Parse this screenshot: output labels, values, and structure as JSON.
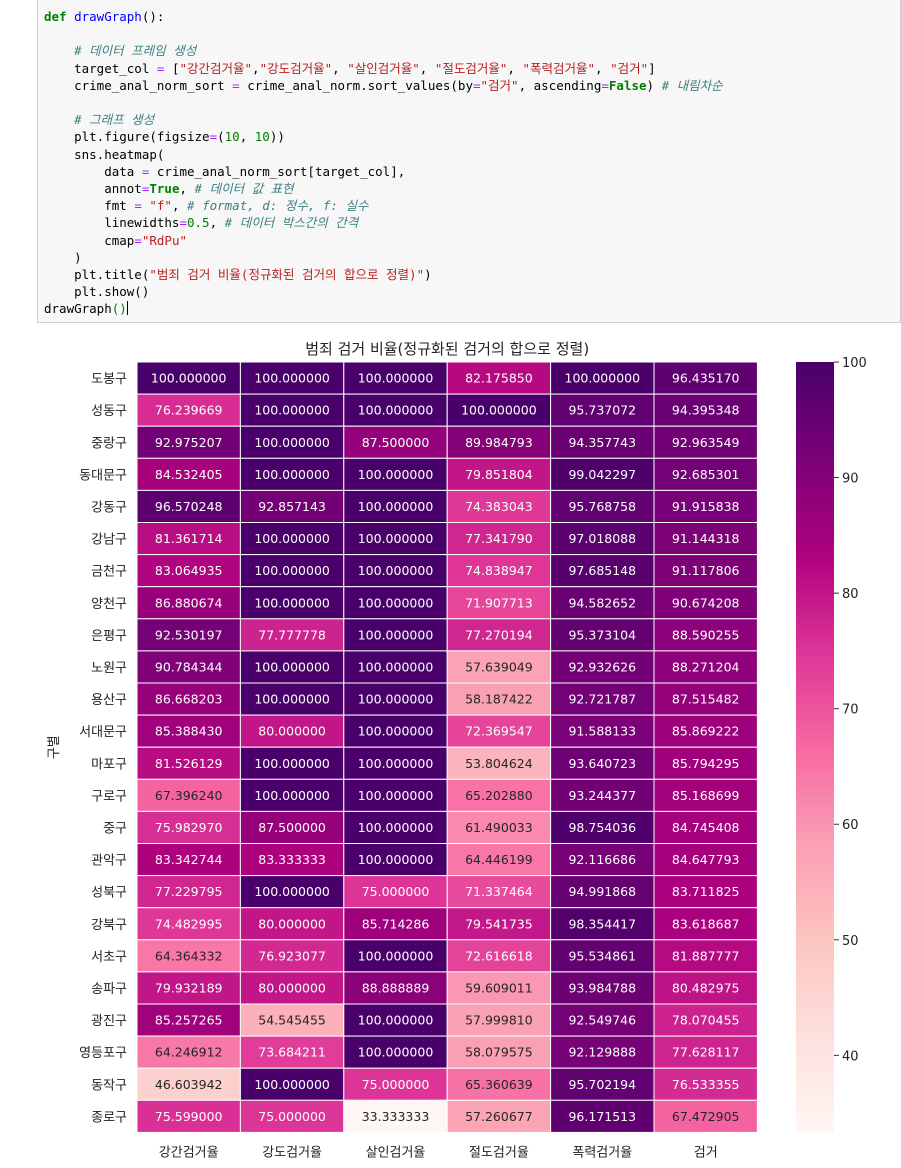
{
  "code": {
    "lines": [
      [
        [
          "kw",
          "def"
        ],
        [
          "",
          ""
        ],
        [
          "fn",
          " drawGraph"
        ],
        [
          "",
          "():"
        ]
      ],
      [
        [
          "",
          ""
        ]
      ],
      [
        [
          "",
          "    "
        ],
        [
          "cm",
          "# 데이터 프레임 생성"
        ]
      ],
      [
        [
          "",
          "    target_col "
        ],
        [
          "op",
          "="
        ],
        [
          "",
          " ["
        ],
        [
          "st",
          "\"강간검거율\""
        ],
        [
          "",
          ","
        ],
        [
          "st",
          "\"강도검거율\""
        ],
        [
          "",
          ", "
        ],
        [
          "st",
          "\"살인검거율\""
        ],
        [
          "",
          ", "
        ],
        [
          "st",
          "\"절도검거율\""
        ],
        [
          "",
          ", "
        ],
        [
          "st",
          "\"폭력검거율\""
        ],
        [
          "",
          ", "
        ],
        [
          "st",
          "\"검거\""
        ],
        [
          "",
          "]"
        ]
      ],
      [
        [
          "",
          "    crime_anal_norm_sort "
        ],
        [
          "op",
          "="
        ],
        [
          "",
          " crime_anal_norm.sort_values(by"
        ],
        [
          "op",
          "="
        ],
        [
          "st",
          "\"검거\""
        ],
        [
          "",
          ", ascending"
        ],
        [
          "op",
          "="
        ],
        [
          "kw",
          "False"
        ],
        [
          "",
          ") "
        ],
        [
          "cm",
          "# 내림차순"
        ]
      ],
      [
        [
          "",
          ""
        ]
      ],
      [
        [
          "",
          "    "
        ],
        [
          "cm",
          "# 그래프 생성"
        ]
      ],
      [
        [
          "",
          "    plt.figure(figsize"
        ],
        [
          "op",
          "="
        ],
        [
          "",
          "("
        ],
        [
          "nm",
          "10"
        ],
        [
          "",
          ", "
        ],
        [
          "nm",
          "10"
        ],
        [
          "",
          "))"
        ]
      ],
      [
        [
          "",
          "    sns.heatmap("
        ]
      ],
      [
        [
          "",
          "        data "
        ],
        [
          "op",
          "="
        ],
        [
          "",
          " crime_anal_norm_sort[target_col],"
        ]
      ],
      [
        [
          "",
          "        annot"
        ],
        [
          "op",
          "="
        ],
        [
          "kw",
          "True"
        ],
        [
          "",
          ", "
        ],
        [
          "cm",
          "# 데이터 값 표현"
        ]
      ],
      [
        [
          "",
          "        fmt "
        ],
        [
          "op",
          "="
        ],
        [
          "",
          " "
        ],
        [
          "st",
          "\"f\""
        ],
        [
          "",
          ", "
        ],
        [
          "cm",
          "# format, d: 정수, f: 실수"
        ]
      ],
      [
        [
          "",
          "        linewidths"
        ],
        [
          "op",
          "="
        ],
        [
          "nm",
          "0.5"
        ],
        [
          "",
          ", "
        ],
        [
          "cm",
          "# 데이터 박스간의 간격"
        ]
      ],
      [
        [
          "",
          "        cmap"
        ],
        [
          "op",
          "="
        ],
        [
          "st",
          "\"RdPu\""
        ]
      ],
      [
        [
          "",
          "    )"
        ]
      ],
      [
        [
          "",
          "    plt.title("
        ],
        [
          "st",
          "\"범죄 검거 비율(정규화된 검거의 합으로 정렬)\""
        ],
        [
          "",
          ")"
        ]
      ],
      [
        [
          "",
          "    plt.show()"
        ]
      ],
      [
        [
          "",
          "drawGraph"
        ],
        [
          "nm",
          "()"
        ]
      ]
    ]
  },
  "chart_data": {
    "type": "heatmap",
    "title": "범죄 검거 비율(정규화된 검거의 합으로 정렬)",
    "ylabel": "구별",
    "xlabel": "",
    "columns": [
      "강간검거율",
      "강도검거율",
      "살인검거율",
      "절도검거율",
      "폭력검거율",
      "검거"
    ],
    "rows": [
      "도봉구",
      "성동구",
      "중랑구",
      "동대문구",
      "강동구",
      "강남구",
      "금천구",
      "양천구",
      "은평구",
      "노원구",
      "용산구",
      "서대문구",
      "마포구",
      "구로구",
      "중구",
      "관악구",
      "성북구",
      "강북구",
      "서초구",
      "송파구",
      "광진구",
      "영등포구",
      "동작구",
      "종로구"
    ],
    "values": [
      [
        100.0,
        100.0,
        100.0,
        82.17585,
        100.0,
        96.43517
      ],
      [
        76.239669,
        100.0,
        100.0,
        100.0,
        95.737072,
        94.395348
      ],
      [
        92.975207,
        100.0,
        87.5,
        89.984793,
        94.357743,
        92.963549
      ],
      [
        84.532405,
        100.0,
        100.0,
        79.851804,
        99.042297,
        92.685301
      ],
      [
        96.570248,
        92.857143,
        100.0,
        74.383043,
        95.768758,
        91.915838
      ],
      [
        81.361714,
        100.0,
        100.0,
        77.34179,
        97.018088,
        91.144318
      ],
      [
        83.064935,
        100.0,
        100.0,
        74.838947,
        97.685148,
        91.117806
      ],
      [
        86.880674,
        100.0,
        100.0,
        71.907713,
        94.582652,
        90.674208
      ],
      [
        92.530197,
        77.777778,
        100.0,
        77.270194,
        95.373104,
        88.590255
      ],
      [
        90.784344,
        100.0,
        100.0,
        57.639049,
        92.932626,
        88.271204
      ],
      [
        86.668203,
        100.0,
        100.0,
        58.187422,
        92.721787,
        87.515482
      ],
      [
        85.38843,
        80.0,
        100.0,
        72.369547,
        91.588133,
        85.869222
      ],
      [
        81.526129,
        100.0,
        100.0,
        53.804624,
        93.640723,
        85.794295
      ],
      [
        67.39624,
        100.0,
        100.0,
        65.20288,
        93.244377,
        85.168699
      ],
      [
        75.98297,
        87.5,
        100.0,
        61.490033,
        98.754036,
        84.745408
      ],
      [
        83.342744,
        83.333333,
        100.0,
        64.446199,
        92.116686,
        84.647793
      ],
      [
        77.229795,
        100.0,
        75.0,
        71.337464,
        94.991868,
        83.711825
      ],
      [
        74.482995,
        80.0,
        85.714286,
        79.541735,
        98.354417,
        83.618687
      ],
      [
        64.364332,
        76.923077,
        100.0,
        72.616618,
        95.534861,
        81.887777
      ],
      [
        79.932189,
        80.0,
        88.888889,
        59.609011,
        93.984788,
        80.482975
      ],
      [
        85.257265,
        54.545455,
        100.0,
        57.99981,
        92.549746,
        78.070455
      ],
      [
        64.246912,
        73.684211,
        100.0,
        58.079575,
        92.129888,
        77.628117
      ],
      [
        46.603942,
        100.0,
        75.0,
        65.360639,
        95.702194,
        76.533355
      ],
      [
        75.599,
        75.0,
        33.333333,
        57.260677,
        96.171513,
        67.472905
      ]
    ],
    "colormap": "RdPu",
    "vmin": 33.333333,
    "vmax": 100,
    "colorbar_ticks": [
      40,
      50,
      60,
      70,
      80,
      90,
      100
    ],
    "colormap_stops": [
      "#fff7f3",
      "#fde0dd",
      "#fcc5c0",
      "#fa9fb5",
      "#f768a1",
      "#dd3497",
      "#ae017e",
      "#7a0177",
      "#49006a"
    ]
  }
}
